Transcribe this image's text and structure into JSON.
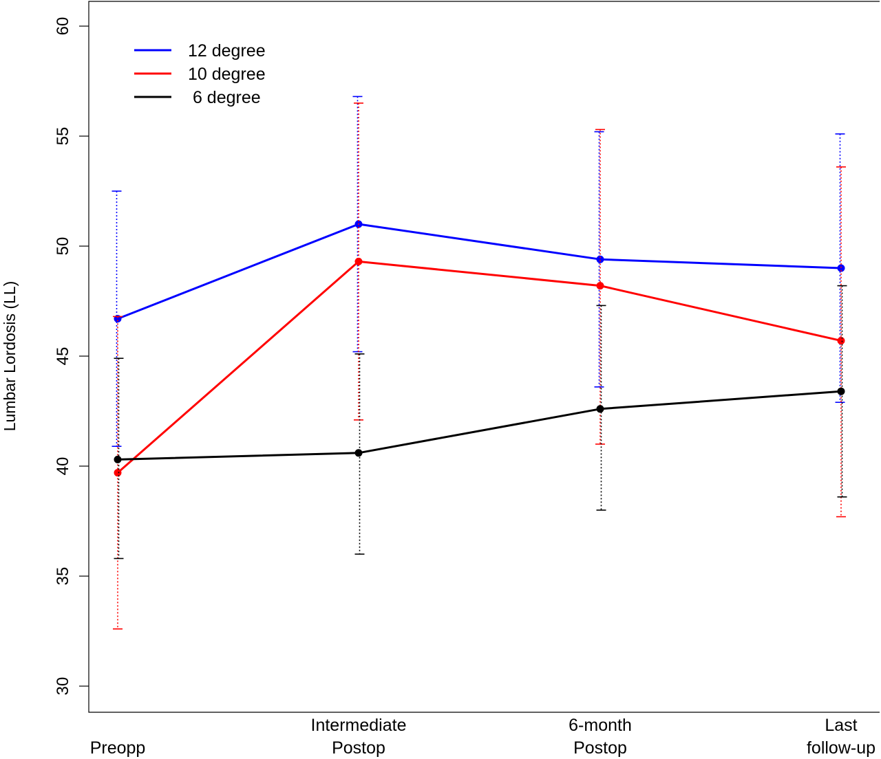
{
  "chart_data": {
    "type": "line",
    "title": "",
    "xlabel": "",
    "ylabel": "Lumbar Lordosis (LL)",
    "ylim": [
      30,
      60
    ],
    "yticks": [
      30,
      35,
      40,
      45,
      50,
      55,
      60
    ],
    "categories": [
      [
        "Preopp"
      ],
      [
        "Intermediate",
        "Postop"
      ],
      [
        "6-month",
        "Postop"
      ],
      [
        "Last",
        "follow-up"
      ]
    ],
    "legend_position": "top-left",
    "grid": false,
    "series": [
      {
        "name": "12 degree",
        "color": "#0000ff",
        "values": [
          46.7,
          51.0,
          49.4,
          49.0
        ],
        "lower": [
          40.9,
          45.2,
          43.6,
          42.9
        ],
        "upper": [
          52.5,
          56.8,
          55.2,
          55.1
        ]
      },
      {
        "name": "10 degree",
        "color": "#ff0000",
        "values": [
          39.7,
          49.3,
          48.2,
          45.7
        ],
        "lower": [
          32.6,
          42.1,
          41.0,
          37.7
        ],
        "upper": [
          46.8,
          56.5,
          55.3,
          53.6
        ]
      },
      {
        "name": " 6 degree",
        "color": "#000000",
        "values": [
          40.3,
          40.6,
          42.6,
          43.4
        ],
        "lower": [
          35.8,
          36.0,
          38.0,
          38.6
        ],
        "upper": [
          44.9,
          45.1,
          47.3,
          48.2
        ]
      }
    ]
  }
}
